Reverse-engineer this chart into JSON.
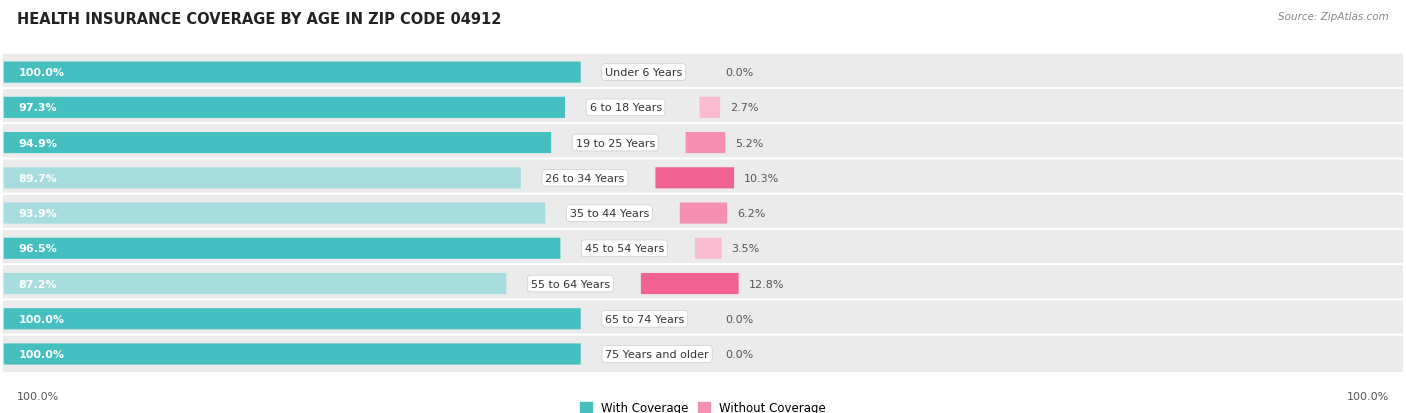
{
  "title": "HEALTH INSURANCE COVERAGE BY AGE IN ZIP CODE 04912",
  "source": "Source: ZipAtlas.com",
  "categories": [
    "Under 6 Years",
    "6 to 18 Years",
    "19 to 25 Years",
    "26 to 34 Years",
    "35 to 44 Years",
    "45 to 54 Years",
    "55 to 64 Years",
    "65 to 74 Years",
    "75 Years and older"
  ],
  "with_coverage": [
    100.0,
    97.3,
    94.9,
    89.7,
    93.9,
    96.5,
    87.2,
    100.0,
    100.0
  ],
  "without_coverage": [
    0.0,
    2.7,
    5.2,
    10.3,
    6.2,
    3.5,
    12.8,
    0.0,
    0.0
  ],
  "color_with": "#45BFBF",
  "color_with_light": "#A8DDE0",
  "color_without_dark": "#F06292",
  "color_without_light": "#F8BBD0",
  "row_bg": "#EBEBEB",
  "title_fontsize": 10.5,
  "label_fontsize": 8.0,
  "pct_fontsize": 8.0,
  "tick_fontsize": 8.0,
  "legend_fontsize": 8.5,
  "xlabel_bottom_left": "100.0%",
  "xlabel_bottom_right": "100.0%",
  "total_width": 100.0,
  "pink_scale": 15.0
}
